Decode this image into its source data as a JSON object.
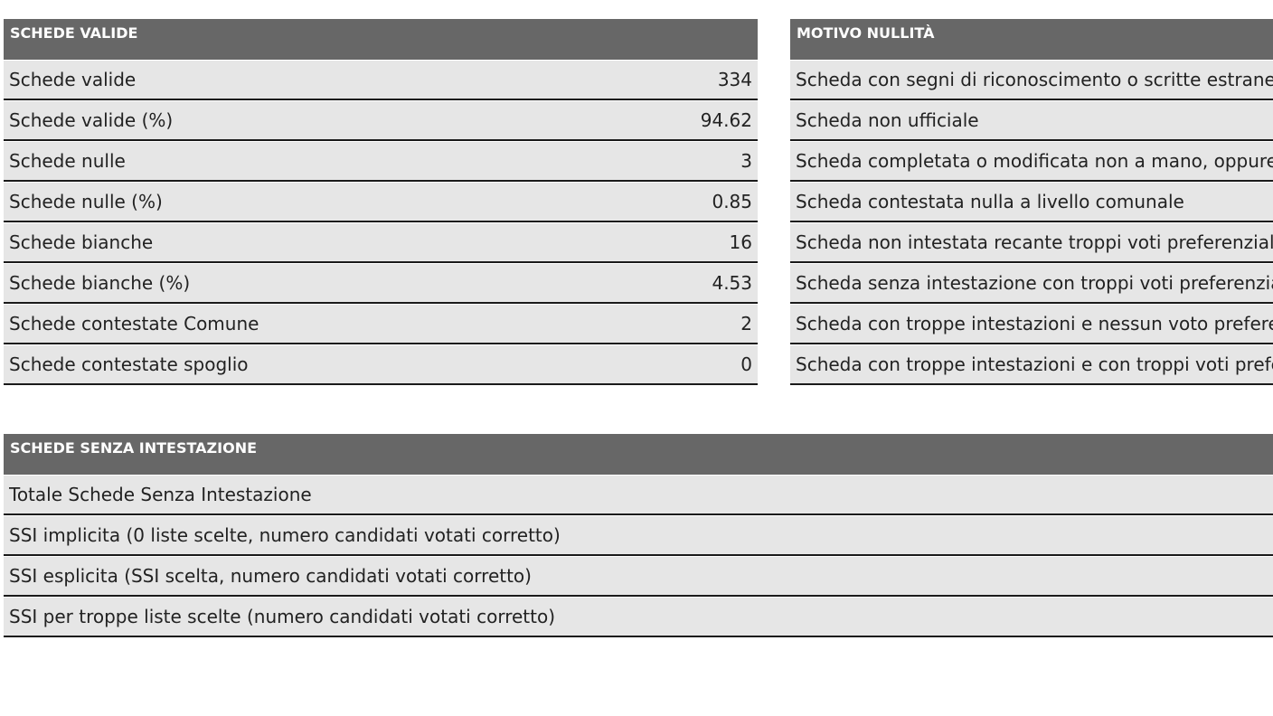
{
  "schede_valide": {
    "header": "SCHEDE VALIDE",
    "rows": [
      {
        "label": "Schede valide",
        "value": "334"
      },
      {
        "label": "Schede valide (%)",
        "value": "94.62"
      },
      {
        "label": "Schede nulle",
        "value": "3"
      },
      {
        "label": "Schede nulle (%)",
        "value": "0.85"
      },
      {
        "label": "Schede bianche",
        "value": "16"
      },
      {
        "label": "Schede bianche (%)",
        "value": "4.53"
      },
      {
        "label": "Schede contestate Comune",
        "value": "2"
      },
      {
        "label": "Schede contestate spoglio",
        "value": "0"
      }
    ]
  },
  "motivo_nullita": {
    "header": "MOTIVO NULLITÀ",
    "rows": [
      {
        "label": "Scheda con segni di riconoscimento o scritte estrane"
      },
      {
        "label": "Scheda non ufficiale"
      },
      {
        "label": "Scheda completata o modificata non a mano, oppure"
      },
      {
        "label": "Scheda contestata nulla a livello comunale"
      },
      {
        "label": "Scheda non intestata recante troppi voti preferenziali"
      },
      {
        "label": "Scheda senza intestazione con troppi voti preferenzia"
      },
      {
        "label": "Scheda con troppe intestazioni e nessun voto prefere"
      },
      {
        "label": "Scheda con troppe intestazioni e con troppi voti prefe"
      }
    ]
  },
  "schede_senza_intestazione": {
    "header": "SCHEDE SENZA INTESTAZIONE",
    "rows": [
      {
        "label": "Totale Schede Senza Intestazione"
      },
      {
        "label": "SSI implicita (0 liste scelte, numero candidati votati corretto)"
      },
      {
        "label": "SSI esplicita (SSI scelta, numero candidati votati corretto)"
      },
      {
        "label": "SSI per troppe liste scelte (numero candidati votati corretto)"
      }
    ]
  }
}
